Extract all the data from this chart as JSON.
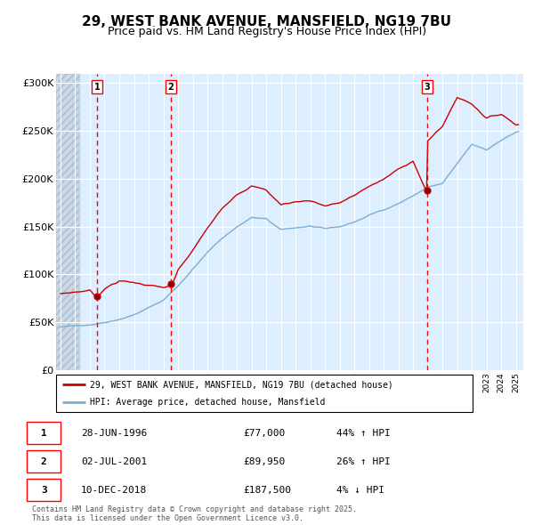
{
  "title": "29, WEST BANK AVENUE, MANSFIELD, NG19 7BU",
  "subtitle": "Price paid vs. HM Land Registry's House Price Index (HPI)",
  "title_fontsize": 11,
  "subtitle_fontsize": 9,
  "ylim": [
    0,
    310000
  ],
  "yticks": [
    0,
    50000,
    100000,
    150000,
    200000,
    250000,
    300000
  ],
  "ytick_labels": [
    "£0",
    "£50K",
    "£100K",
    "£150K",
    "£200K",
    "£250K",
    "£300K"
  ],
  "xlim_start": 1993.7,
  "xlim_end": 2025.5,
  "hatch_end": 1995.3,
  "bg_color": "#ddeeff",
  "hatch_color": "#c8d8e8",
  "grid_color": "#ffffff",
  "purchase_dates": [
    1996.49,
    2001.5,
    2018.94
  ],
  "purchase_labels": [
    "1",
    "2",
    "3"
  ],
  "purchase_prices": [
    77000,
    89950,
    187500
  ],
  "purchase_info": [
    {
      "label": "1",
      "date": "28-JUN-1996",
      "price": "£77,000",
      "hpi": "44% ↑ HPI"
    },
    {
      "label": "2",
      "date": "02-JUL-2001",
      "price": "£89,950",
      "hpi": "26% ↑ HPI"
    },
    {
      "label": "3",
      "date": "10-DEC-2018",
      "price": "£187,500",
      "hpi": "4% ↓ HPI"
    }
  ],
  "red_line_color": "#cc0000",
  "blue_line_color": "#7aaed4",
  "legend_label_red": "29, WEST BANK AVENUE, MANSFIELD, NG19 7BU (detached house)",
  "legend_label_blue": "HPI: Average price, detached house, Mansfield",
  "footnote": "Contains HM Land Registry data © Crown copyright and database right 2025.\nThis data is licensed under the Open Government Licence v3.0."
}
